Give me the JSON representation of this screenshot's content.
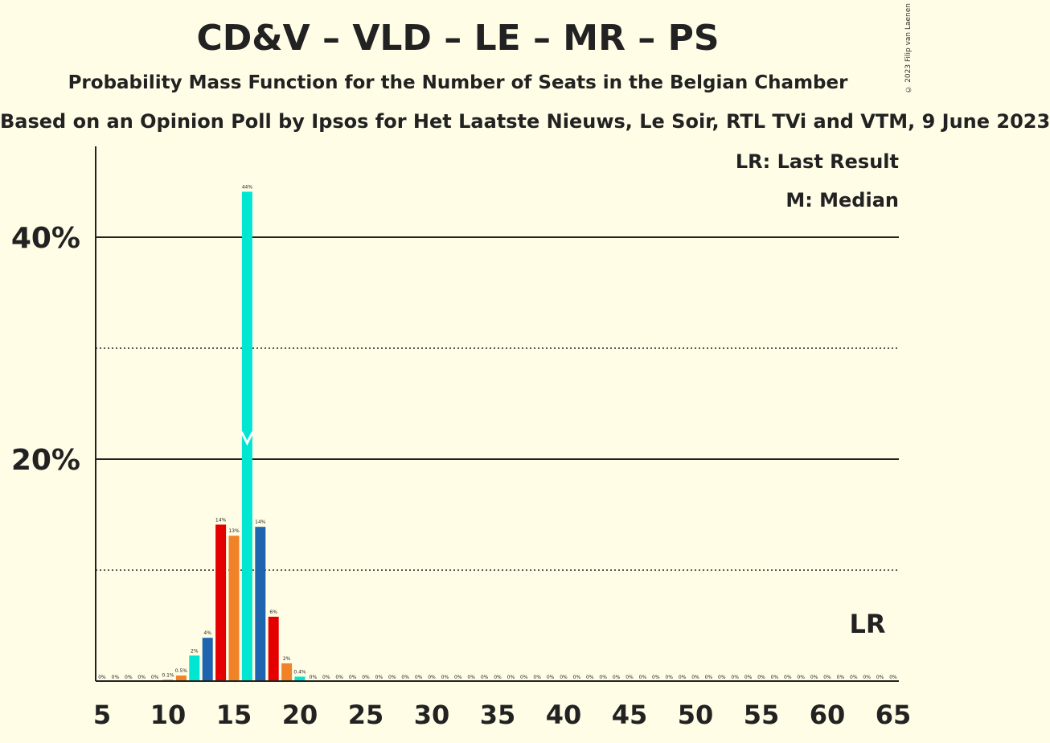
{
  "title": "CD&V – VLD – LE – MR – PS",
  "subtitle": "Probability Mass Function for the Number of Seats in the Belgian Chamber",
  "source": "Based on an Opinion Poll by Ipsos for Het Laatste Nieuws, Le Soir, RTL TVi and VTM, 9 June 2023",
  "copyright": "© 2023 Filip van Laenen",
  "legend": {
    "last_result": "LR: Last Result",
    "median": "M: Median"
  },
  "lr_label": "LR",
  "colors": {
    "background": "#FFFDE6",
    "red": "#E50000",
    "orange": "#F08328",
    "cyan": "#00E6D2",
    "blue": "#1F64AE"
  },
  "chart_data": {
    "type": "bar",
    "x": [
      5,
      6,
      7,
      8,
      9,
      10,
      11,
      12,
      13,
      14,
      15,
      16,
      17,
      18,
      19,
      20,
      21,
      22,
      23,
      24,
      25,
      26,
      27,
      28,
      29,
      30,
      31,
      32,
      33,
      34,
      35,
      36,
      37,
      38,
      39,
      40,
      41,
      42,
      43,
      44,
      45,
      46,
      47,
      48,
      49,
      50,
      51,
      52,
      53,
      54,
      55,
      56,
      57,
      58,
      59,
      60,
      61,
      62,
      63,
      64,
      65
    ],
    "values": [
      0,
      0,
      0,
      0,
      0,
      0.1,
      0.5,
      2.3,
      3.9,
      14.1,
      13.1,
      44.1,
      13.9,
      5.8,
      1.6,
      0.4,
      0,
      0,
      0,
      0,
      0,
      0,
      0,
      0,
      0,
      0,
      0,
      0,
      0,
      0,
      0,
      0,
      0,
      0,
      0,
      0,
      0,
      0,
      0,
      0,
      0,
      0,
      0,
      0,
      0,
      0,
      0,
      0,
      0,
      0,
      0,
      0,
      0,
      0,
      0,
      0,
      0,
      0,
      0,
      0,
      0
    ],
    "value_labels": [
      "0%",
      "0%",
      "0%",
      "0%",
      "0%",
      "0.1%",
      "0.5%",
      "2%",
      "4%",
      "14%",
      "13%",
      "44%",
      "14%",
      "6%",
      "2%",
      "0.4%",
      "0%",
      "0%",
      "0%",
      "0%",
      "0%",
      "0%",
      "0%",
      "0%",
      "0%",
      "0%",
      "0%",
      "0%",
      "0%",
      "0%",
      "0%",
      "0%",
      "0%",
      "0%",
      "0%",
      "0%",
      "0%",
      "0%",
      "0%",
      "0%",
      "0%",
      "0%",
      "0%",
      "0%",
      "0%",
      "0%",
      "0%",
      "0%",
      "0%",
      "0%",
      "0%",
      "0%",
      "0%",
      "0%",
      "0%",
      "0%",
      "0%",
      "0%",
      "0%",
      "0%",
      "0%"
    ],
    "bar_colors": [
      "red",
      "orange",
      "cyan",
      "blue"
    ],
    "xticks": [
      "5",
      "10",
      "15",
      "20",
      "25",
      "30",
      "35",
      "40",
      "45",
      "50",
      "55",
      "60",
      "65"
    ],
    "yticks": [
      "20%",
      "40%"
    ],
    "ylim": [
      0,
      48
    ],
    "xlim": [
      5,
      65
    ],
    "median": 16,
    "last_result": 63
  }
}
